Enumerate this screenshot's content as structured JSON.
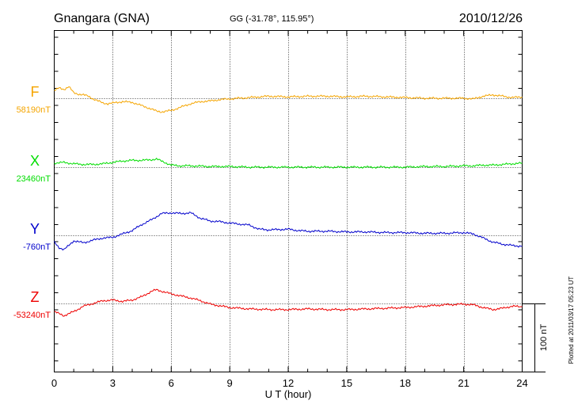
{
  "header": {
    "station": "Gnangara (GNA)",
    "coords": "GG (-31.78°, 115.95°)",
    "date": "2010/12/26"
  },
  "footer_note": "Plotted at 2011/03/17 05:23 UT",
  "scale_bar_label": "100 nT",
  "chart_data": {
    "type": "line",
    "xlabel": "U T (hour)",
    "xlim": [
      0,
      24
    ],
    "xticks": [
      "0",
      "3",
      "6",
      "9",
      "12",
      "15",
      "18",
      "21",
      "24"
    ],
    "y_unit": "nT",
    "grid": true,
    "series": [
      {
        "name": "F",
        "baseline": "58190nT",
        "color": "#f5a500",
        "points": [
          [
            0,
            58201
          ],
          [
            0.25,
            58205
          ],
          [
            0.5,
            58203
          ],
          [
            0.75,
            58207
          ],
          [
            1.0,
            58198
          ],
          [
            1.25,
            58196
          ],
          [
            1.5,
            58195
          ],
          [
            1.75,
            58193
          ],
          [
            2.0,
            58189
          ],
          [
            2.25,
            58186
          ],
          [
            2.5,
            58183
          ],
          [
            2.75,
            58182
          ],
          [
            3.0,
            58183
          ],
          [
            3.5,
            58185
          ],
          [
            4.0,
            58184
          ],
          [
            4.5,
            58179
          ],
          [
            5.0,
            58174
          ],
          [
            5.25,
            58171
          ],
          [
            5.5,
            58170
          ],
          [
            5.75,
            58171
          ],
          [
            6.0,
            58172
          ],
          [
            6.5,
            58177
          ],
          [
            7.0,
            58182
          ],
          [
            7.5,
            58185
          ],
          [
            8.0,
            58186
          ],
          [
            8.5,
            58188
          ],
          [
            9.0,
            58189
          ],
          [
            10.0,
            58191
          ],
          [
            11.0,
            58193
          ],
          [
            12.0,
            58192
          ],
          [
            13.0,
            58193
          ],
          [
            14.0,
            58193
          ],
          [
            15.0,
            58192
          ],
          [
            16.0,
            58193
          ],
          [
            17.0,
            58192
          ],
          [
            18.0,
            58191
          ],
          [
            19.0,
            58190
          ],
          [
            20.0,
            58190
          ],
          [
            21.0,
            58190
          ],
          [
            21.5,
            58189
          ],
          [
            22.0,
            58193
          ],
          [
            22.5,
            58195
          ],
          [
            23.0,
            58193
          ],
          [
            23.5,
            58191
          ],
          [
            24.0,
            58192
          ]
        ]
      },
      {
        "name": "X",
        "baseline": "23460nT",
        "color": "#00dd00",
        "points": [
          [
            0,
            23466
          ],
          [
            0.5,
            23467
          ],
          [
            1.0,
            23465
          ],
          [
            1.5,
            23464
          ],
          [
            2.0,
            23464
          ],
          [
            2.5,
            23465
          ],
          [
            3.0,
            23467
          ],
          [
            3.5,
            23469
          ],
          [
            4.0,
            23470
          ],
          [
            4.5,
            23470
          ],
          [
            5.0,
            23471
          ],
          [
            5.25,
            23472
          ],
          [
            5.5,
            23469
          ],
          [
            6.0,
            23463
          ],
          [
            6.5,
            23462
          ],
          [
            7.0,
            23462
          ],
          [
            8.0,
            23461
          ],
          [
            9.0,
            23461
          ],
          [
            10.0,
            23460
          ],
          [
            11.0,
            23460
          ],
          [
            12.0,
            23460
          ],
          [
            13.0,
            23460
          ],
          [
            14.0,
            23460
          ],
          [
            15.0,
            23460
          ],
          [
            16.0,
            23460
          ],
          [
            17.0,
            23460
          ],
          [
            18.0,
            23460
          ],
          [
            19.0,
            23461
          ],
          [
            20.0,
            23461
          ],
          [
            21.0,
            23462
          ],
          [
            21.5,
            23462
          ],
          [
            22.0,
            23463
          ],
          [
            22.5,
            23463
          ],
          [
            23.0,
            23464
          ],
          [
            23.5,
            23465
          ],
          [
            24.0,
            23466
          ]
        ]
      },
      {
        "name": "Y",
        "baseline": "-760nT",
        "color": "#0000cc",
        "points": [
          [
            0,
            -770
          ],
          [
            0.25,
            -778
          ],
          [
            0.5,
            -781
          ],
          [
            0.75,
            -775
          ],
          [
            1.0,
            -768
          ],
          [
            1.5,
            -771
          ],
          [
            2.0,
            -767
          ],
          [
            2.5,
            -764
          ],
          [
            3.0,
            -763
          ],
          [
            3.5,
            -758
          ],
          [
            4.0,
            -753
          ],
          [
            4.5,
            -744
          ],
          [
            5.0,
            -737
          ],
          [
            5.5,
            -728
          ],
          [
            6.0,
            -727
          ],
          [
            6.5,
            -728
          ],
          [
            7.0,
            -727
          ],
          [
            7.5,
            -735
          ],
          [
            8.0,
            -739
          ],
          [
            8.5,
            -740
          ],
          [
            9.0,
            -742
          ],
          [
            10.0,
            -745
          ],
          [
            10.5,
            -751
          ],
          [
            11.0,
            -752
          ],
          [
            12.0,
            -751
          ],
          [
            12.5,
            -753
          ],
          [
            13.0,
            -754
          ],
          [
            14.0,
            -754
          ],
          [
            15.0,
            -755
          ],
          [
            16.0,
            -755
          ],
          [
            17.0,
            -756
          ],
          [
            18.0,
            -756
          ],
          [
            19.0,
            -757
          ],
          [
            20.0,
            -757
          ],
          [
            21.0,
            -756
          ],
          [
            21.5,
            -758
          ],
          [
            22.0,
            -764
          ],
          [
            22.5,
            -770
          ],
          [
            23.0,
            -773
          ],
          [
            23.5,
            -775
          ],
          [
            24.0,
            -776
          ]
        ]
      },
      {
        "name": "Z",
        "baseline": "-53240nT",
        "color": "#ee0000",
        "points": [
          [
            0,
            -53252
          ],
          [
            0.25,
            -53255
          ],
          [
            0.5,
            -53258
          ],
          [
            0.75,
            -53255
          ],
          [
            1.0,
            -53252
          ],
          [
            1.5,
            -53244
          ],
          [
            2.0,
            -53240
          ],
          [
            2.5,
            -53236
          ],
          [
            3.0,
            -53235
          ],
          [
            3.5,
            -53237
          ],
          [
            4.0,
            -53235
          ],
          [
            4.5,
            -53230
          ],
          [
            5.0,
            -53222
          ],
          [
            5.25,
            -53220
          ],
          [
            5.5,
            -53222
          ],
          [
            6.0,
            -53226
          ],
          [
            6.5,
            -53229
          ],
          [
            7.0,
            -53232
          ],
          [
            7.5,
            -53236
          ],
          [
            8.0,
            -53241
          ],
          [
            9.0,
            -53246
          ],
          [
            10.0,
            -53248
          ],
          [
            11.0,
            -53249
          ],
          [
            12.0,
            -53249
          ],
          [
            13.0,
            -53248
          ],
          [
            14.0,
            -53249
          ],
          [
            15.0,
            -53249
          ],
          [
            16.0,
            -53248
          ],
          [
            17.0,
            -53247
          ],
          [
            18.0,
            -53246
          ],
          [
            19.0,
            -53244
          ],
          [
            20.0,
            -53242
          ],
          [
            21.0,
            -53241
          ],
          [
            21.5,
            -53242
          ],
          [
            22.0,
            -53246
          ],
          [
            22.5,
            -53249
          ],
          [
            23.0,
            -53247
          ],
          [
            23.5,
            -53244
          ],
          [
            24.0,
            -53245
          ]
        ]
      }
    ]
  }
}
